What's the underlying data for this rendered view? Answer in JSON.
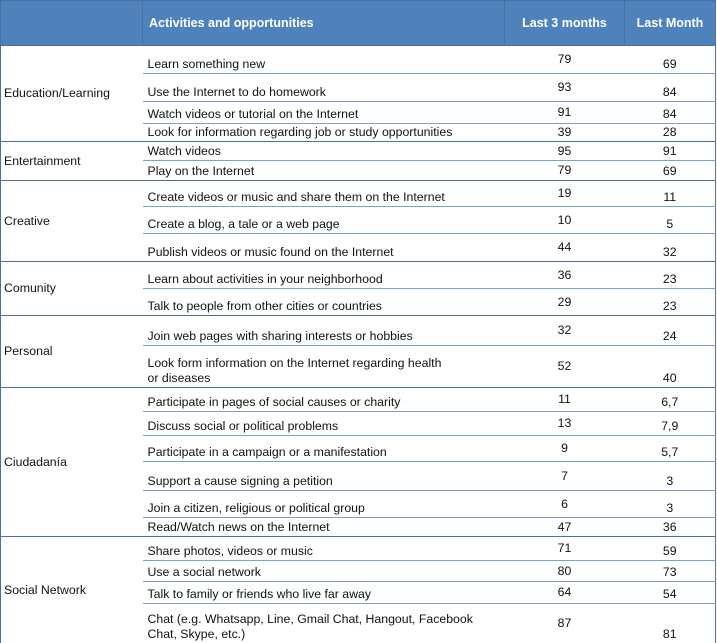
{
  "table": {
    "header": [
      "",
      "Activities and opportunities",
      "Last 3 months",
      "Last Month"
    ],
    "groups": [
      {
        "name": "Education/Learning",
        "rows": [
          [
            "Learn something new",
            "79",
            "69"
          ],
          [
            "Use the Internet to do homework",
            "93",
            "84"
          ],
          [
            "Watch videos or tutorial on the Internet",
            "91",
            "84"
          ],
          [
            "Look for information regarding job or study opportunities",
            "39",
            "28"
          ]
        ]
      },
      {
        "name": "Entertainment",
        "rows": [
          [
            "Watch videos",
            "95",
            "91"
          ],
          [
            "Play on the Internet",
            "79",
            "69"
          ]
        ]
      },
      {
        "name": "Creative",
        "rows": [
          [
            "Create videos or music and share them on the Internet",
            "19",
            "11"
          ],
          [
            "Create a blog, a tale or a web page",
            "10",
            "5"
          ],
          [
            "Publish videos or music found on the Internet",
            "44",
            "32"
          ]
        ]
      },
      {
        "name": "Comunity",
        "rows": [
          [
            "Learn about activities in your neighborhood",
            "36",
            "23"
          ],
          [
            "Talk to people from other cities or countries",
            "29",
            "23"
          ]
        ]
      },
      {
        "name": "Personal",
        "rows": [
          [
            "Join web pages with sharing interests or hobbies",
            "32",
            "24"
          ],
          [
            "Look form information on the Internet regarding health\nor diseases",
            "52",
            "40"
          ]
        ]
      },
      {
        "name": "Ciudadanía",
        "rows": [
          [
            "Participate in pages of social causes or charity",
            "11",
            "6,7"
          ],
          [
            "Discuss social or political problems",
            "13",
            "7,9"
          ],
          [
            "Participate in a campaign or a manifestation",
            "9",
            "5,7"
          ],
          [
            "Support a cause signing a petition",
            "7",
            "3"
          ],
          [
            "Join a citizen, religious or political group",
            "6",
            "3"
          ],
          [
            "Read/Watch news on the Internet",
            "47",
            "36"
          ]
        ]
      },
      {
        "name": "Social Network",
        "rows": [
          [
            "Share photos, videos or music",
            "71",
            "59"
          ],
          [
            "Use a social network",
            "80",
            "73"
          ],
          [
            "Talk to family or friends who live far away",
            "64",
            "54"
          ],
          [
            "Chat (e.g. Whatsapp, Line, Gmail Chat, Hangout, Facebook\nChat, Skype, etc.)",
            "87",
            "81"
          ]
        ]
      }
    ]
  }
}
